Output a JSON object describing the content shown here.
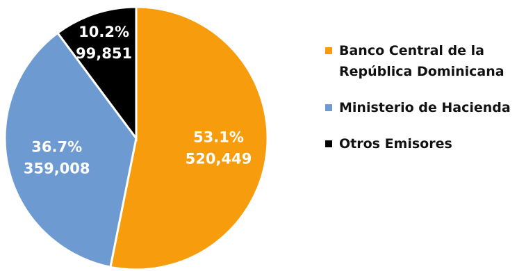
{
  "chart_data": {
    "type": "pie",
    "title": "",
    "slices": [
      {
        "name": "Banco Central de la República Dominicana",
        "percent_label": "53.1%",
        "value_label": "520,449",
        "value": 520449,
        "color": "#F79C0C",
        "label_color": "#ffffff"
      },
      {
        "name": "Ministerio de Hacienda",
        "percent_label": "36.7%",
        "value_label": "359,008",
        "value": 359008,
        "color": "#6D9BD1",
        "label_color": "#ffffff"
      },
      {
        "name": "Otros Emisores",
        "percent_label": "10.2%",
        "value_label": "99,851",
        "value": 99851,
        "color": "#000000",
        "label_color": "#ffffff"
      }
    ],
    "legend_position": "right"
  }
}
